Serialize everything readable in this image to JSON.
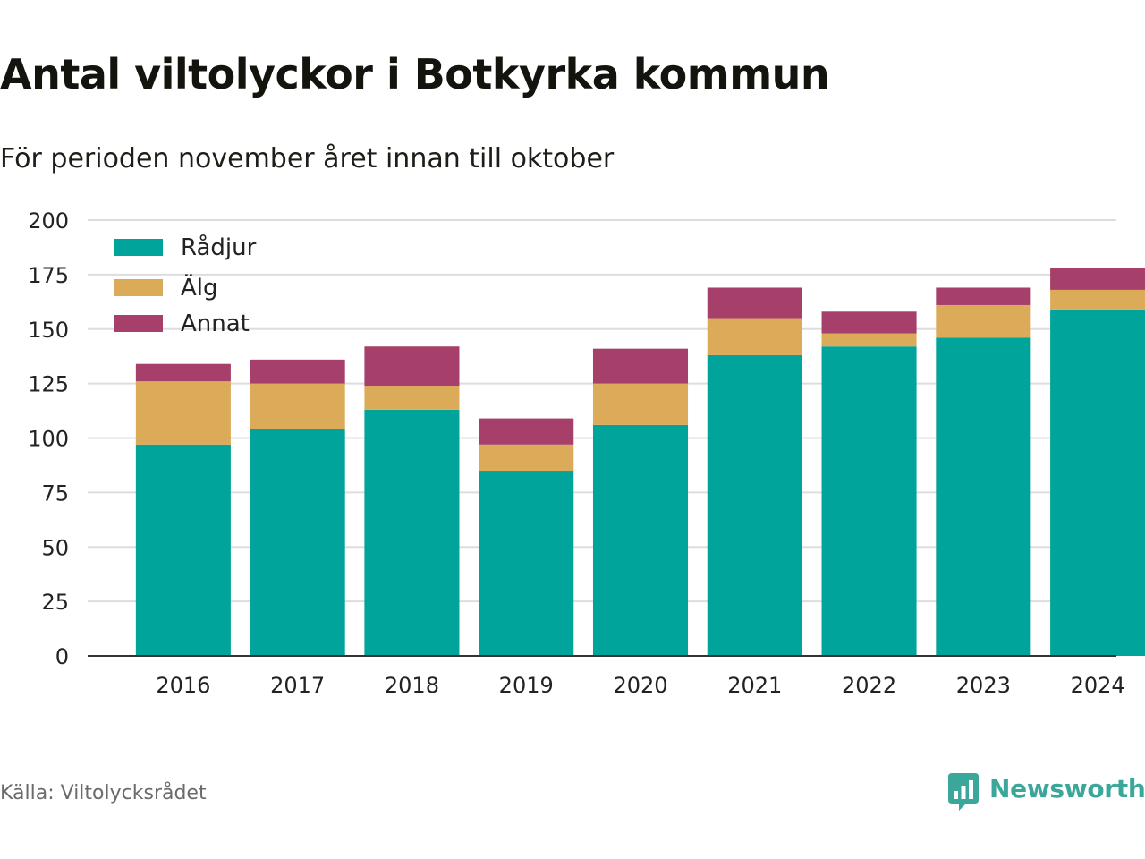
{
  "header": {
    "title": "Antal viltolyckor i Botkyrka kommun",
    "subtitle": "För perioden november året innan till oktober"
  },
  "footer": {
    "source": "Källa: Viltolycksrådet",
    "brand": "Newsworthy",
    "brand_icon": "bar-chart-speech-bubble-icon"
  },
  "colors": {
    "Rådjur": "#00a49a",
    "Älg": "#dcab5a",
    "Annat": "#a6406a",
    "grid": "#dddddd",
    "axis": "#333333",
    "brand": "#3aa79a"
  },
  "chart_data": {
    "type": "bar",
    "stacked": true,
    "categories": [
      "2016",
      "2017",
      "2018",
      "2019",
      "2020",
      "2021",
      "2022",
      "2023",
      "2024"
    ],
    "series": [
      {
        "name": "Rådjur",
        "values": [
          97,
          104,
          113,
          85,
          106,
          138,
          142,
          146,
          159
        ]
      },
      {
        "name": "Älg",
        "values": [
          29,
          21,
          11,
          12,
          19,
          17,
          6,
          15,
          9
        ]
      },
      {
        "name": "Annat",
        "values": [
          8,
          11,
          18,
          12,
          16,
          14,
          10,
          8,
          10
        ]
      }
    ],
    "ylim": [
      0,
      200
    ],
    "yticks": [
      0,
      25,
      50,
      75,
      100,
      125,
      150,
      175,
      200
    ],
    "grid": true,
    "legend": "top-left"
  }
}
